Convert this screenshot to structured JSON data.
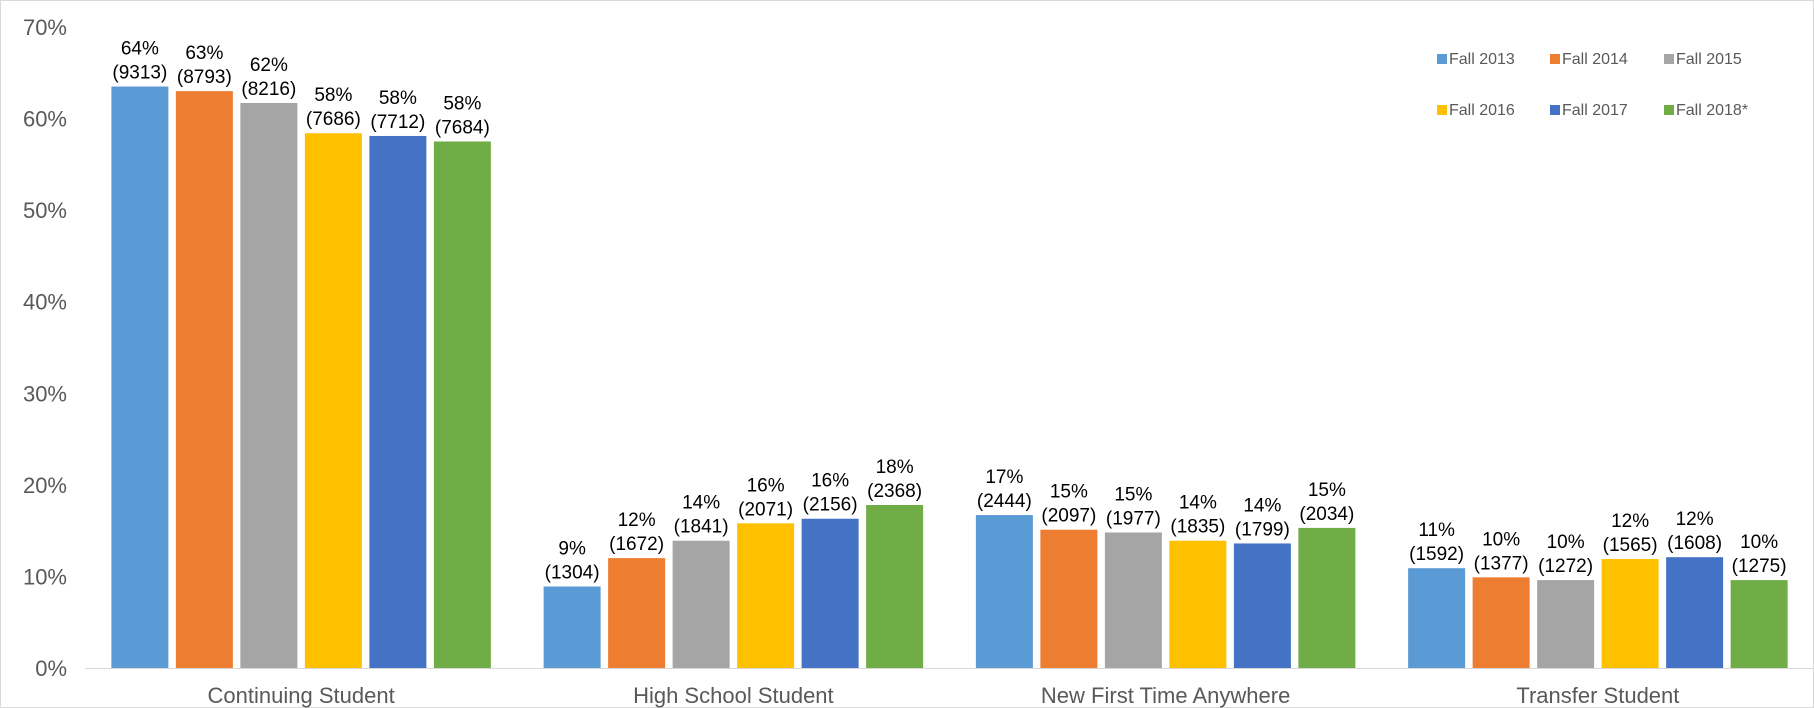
{
  "chart_data": {
    "type": "bar",
    "title": "",
    "xlabel": "",
    "ylabel": "",
    "ylim": [
      0,
      70
    ],
    "yticks": [
      "0%",
      "10%",
      "20%",
      "30%",
      "40%",
      "50%",
      "60%",
      "70%"
    ],
    "grid": false,
    "legend_position": "top-right",
    "categories": [
      "Continuing Student",
      "High School Student",
      "New First Time Anywhere",
      "Transfer Student"
    ],
    "series": [
      {
        "name": "Fall 2013",
        "color": "#5B9BD5",
        "values": [
          63.5,
          8.9,
          16.7,
          10.9
        ],
        "labels": [
          "64%",
          "9%",
          "17%",
          "11%"
        ],
        "counts": [
          "(9313)",
          "(1304)",
          "(2444)",
          "(1592)"
        ]
      },
      {
        "name": "Fall 2014",
        "color": "#ED7D31",
        "values": [
          63.0,
          12.0,
          15.1,
          9.9
        ],
        "labels": [
          "63%",
          "12%",
          "15%",
          "10%"
        ],
        "counts": [
          "(8793)",
          "(1672)",
          "(2097)",
          "(1377)"
        ]
      },
      {
        "name": "Fall 2015",
        "color": "#A5A5A5",
        "values": [
          61.7,
          13.9,
          14.8,
          9.6
        ],
        "labels": [
          "62%",
          "14%",
          "15%",
          "10%"
        ],
        "counts": [
          "(8216)",
          "(1841)",
          "(1977)",
          "(1272)"
        ]
      },
      {
        "name": "Fall 2016",
        "color": "#FFC000",
        "values": [
          58.4,
          15.8,
          13.9,
          11.9
        ],
        "labels": [
          "58%",
          "16%",
          "14%",
          "12%"
        ],
        "counts": [
          "(7686)",
          "(2071)",
          "(1835)",
          "(1565)"
        ]
      },
      {
        "name": "Fall 2017",
        "color": "#4472C4",
        "values": [
          58.1,
          16.3,
          13.6,
          12.1
        ],
        "labels": [
          "58%",
          "16%",
          "14%",
          "12%"
        ],
        "counts": [
          "(7712)",
          "(2156)",
          "(1799)",
          "(1608)"
        ]
      },
      {
        "name": "Fall 2018*",
        "color": "#70AD47",
        "values": [
          57.5,
          17.8,
          15.3,
          9.6
        ],
        "labels": [
          "58%",
          "18%",
          "15%",
          "10%"
        ],
        "counts": [
          "(7684)",
          "(2368)",
          "(2034)",
          "(1275)"
        ]
      }
    ]
  }
}
